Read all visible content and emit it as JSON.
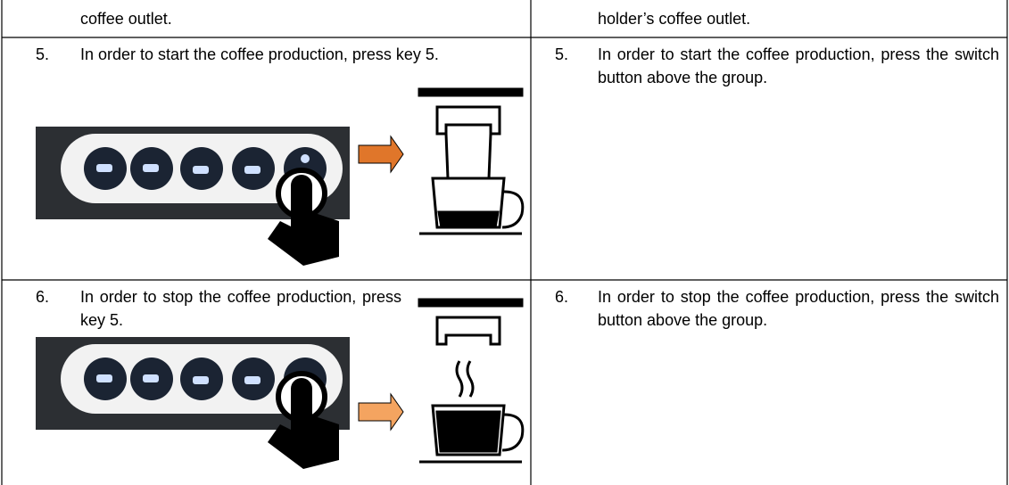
{
  "table": {
    "rows": [
      {
        "left": {
          "text": "coffee outlet."
        },
        "right": {
          "text": "holder’s coffee outlet."
        }
      },
      {
        "left": {
          "number": "5.",
          "text": "In order to start the coffee production, press key 5."
        },
        "right": {
          "number": "5.",
          "text": "In order to start the coffee production, press the switch button above the group."
        }
      },
      {
        "left": {
          "number": "6.",
          "text": "In order to stop the coffee production, press key 5."
        },
        "right": {
          "number": "6.",
          "text": "In order to stop the coffee production, press the switch button above the group."
        }
      }
    ]
  }
}
